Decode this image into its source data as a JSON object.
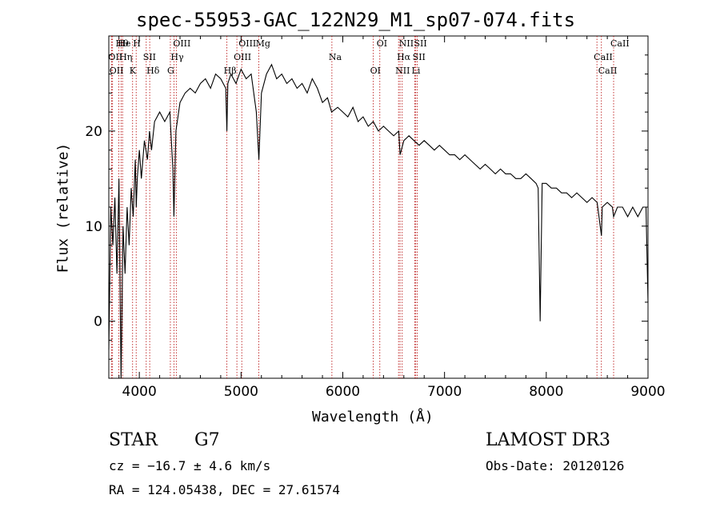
{
  "chart_data": {
    "type": "line",
    "title": "spec-55953-GAC_122N29_M1_sp07-074.fits",
    "xlabel": "Wavelength (Å)",
    "ylabel": "Flux (relative)",
    "xlim": [
      3700,
      9000
    ],
    "ylim": [
      -6,
      30
    ],
    "x_ticks": [
      4000,
      5000,
      6000,
      7000,
      8000,
      9000
    ],
    "y_ticks": [
      0,
      10,
      20
    ],
    "grid": false,
    "series": [
      {
        "name": "flux",
        "x": [
          3700,
          3720,
          3740,
          3760,
          3780,
          3800,
          3820,
          3840,
          3860,
          3880,
          3900,
          3920,
          3940,
          3960,
          3970,
          3980,
          4000,
          4020,
          4050,
          4080,
          4100,
          4120,
          4150,
          4200,
          4250,
          4300,
          4330,
          4340,
          4360,
          4400,
          4450,
          4500,
          4550,
          4600,
          4650,
          4700,
          4750,
          4800,
          4850,
          4861,
          4870,
          4900,
          4950,
          5000,
          5050,
          5100,
          5150,
          5175,
          5200,
          5250,
          5300,
          5350,
          5400,
          5450,
          5500,
          5550,
          5600,
          5650,
          5700,
          5750,
          5800,
          5850,
          5890,
          5950,
          6000,
          6050,
          6100,
          6150,
          6200,
          6250,
          6300,
          6350,
          6400,
          6450,
          6500,
          6550,
          6563,
          6600,
          6650,
          6700,
          6750,
          6800,
          6850,
          6900,
          6950,
          7000,
          7050,
          7100,
          7150,
          7200,
          7250,
          7300,
          7350,
          7400,
          7450,
          7500,
          7550,
          7600,
          7650,
          7700,
          7750,
          7800,
          7850,
          7900,
          7920,
          7940,
          7960,
          8000,
          8050,
          8100,
          8150,
          8200,
          8250,
          8300,
          8350,
          8400,
          8450,
          8500,
          8542,
          8550,
          8600,
          8650,
          8662,
          8700,
          8750,
          8800,
          8850,
          8900,
          8950,
          8980,
          9000
        ],
        "y": [
          -3,
          12,
          8,
          13,
          5,
          15,
          -6,
          10,
          5,
          12,
          8,
          14,
          11,
          17,
          12,
          15,
          18,
          15,
          19,
          17,
          20,
          18,
          21,
          22,
          21,
          22,
          16,
          11,
          20,
          23,
          24,
          24.5,
          24,
          25,
          25.5,
          24.5,
          26,
          25.5,
          24.5,
          20,
          25,
          26,
          25,
          26.5,
          25.5,
          26,
          22,
          17,
          24,
          26,
          27,
          25.5,
          26,
          25,
          25.5,
          24.5,
          25,
          24,
          25.5,
          24.5,
          23,
          23.5,
          22,
          22.5,
          22,
          21.5,
          22.5,
          21,
          21.5,
          20.5,
          21,
          20,
          20.5,
          20,
          19.5,
          20,
          17.5,
          19,
          19.5,
          19,
          18.5,
          19,
          18.5,
          18,
          18.5,
          18,
          17.5,
          17.5,
          17,
          17.5,
          17,
          16.5,
          16,
          16.5,
          16,
          15.5,
          16,
          15.5,
          15.5,
          15,
          15,
          15.5,
          15,
          14.5,
          14,
          0,
          14.5,
          14.5,
          14,
          14,
          13.5,
          13.5,
          13,
          13.5,
          13,
          12.5,
          13,
          12.5,
          9,
          12,
          12.5,
          12,
          11,
          12,
          12,
          11,
          12,
          11,
          12,
          12,
          2
        ]
      }
    ],
    "lines": [
      {
        "label": "Hθ",
        "wave": 3798
      },
      {
        "label": "OII",
        "wave": 3727
      },
      {
        "label": "OII",
        "wave": 3737
      },
      {
        "label": "He",
        "wave": 3820
      },
      {
        "label": "Hη",
        "wave": 3835
      },
      {
        "label": "K",
        "wave": 3934
      },
      {
        "label": "H",
        "wave": 3969
      },
      {
        "label": "SII",
        "wave": 4068
      },
      {
        "label": "Hδ",
        "wave": 4102
      },
      {
        "label": "OIII",
        "wave": 4363
      },
      {
        "label": "Hγ",
        "wave": 4340
      },
      {
        "label": "G",
        "wave": 4305
      },
      {
        "label": "OIII",
        "wave": 5007
      },
      {
        "label": "OIII",
        "wave": 4959
      },
      {
        "label": "Hβ",
        "wave": 4861
      },
      {
        "label": "Mg",
        "wave": 5175
      },
      {
        "label": "Na",
        "wave": 5893
      },
      {
        "label": "OI",
        "wave": 6300
      },
      {
        "label": "OI",
        "wave": 6364
      },
      {
        "label": "Hα",
        "wave": 6563
      },
      {
        "label": "NII",
        "wave": 6548
      },
      {
        "label": "NII",
        "wave": 6584
      },
      {
        "label": "SII",
        "wave": 6717
      },
      {
        "label": "Li",
        "wave": 6708
      },
      {
        "label": "SII",
        "wave": 6731
      },
      {
        "label": "CaII",
        "wave": 8498
      },
      {
        "label": "CaII",
        "wave": 8542
      },
      {
        "label": "CaII",
        "wave": 8662
      }
    ]
  },
  "info": {
    "object_class": "STAR",
    "subclass": "G7",
    "cz": "cz = −16.7 ± 4.6 km/s",
    "coords": "RA = 124.05438, DEC =  27.61574",
    "survey": "LAMOST DR3",
    "obs_date": "Obs-Date: 20120126"
  },
  "colors": {
    "axis": "#000000",
    "spectrum": "#000000",
    "line_marker": "#b40000"
  }
}
